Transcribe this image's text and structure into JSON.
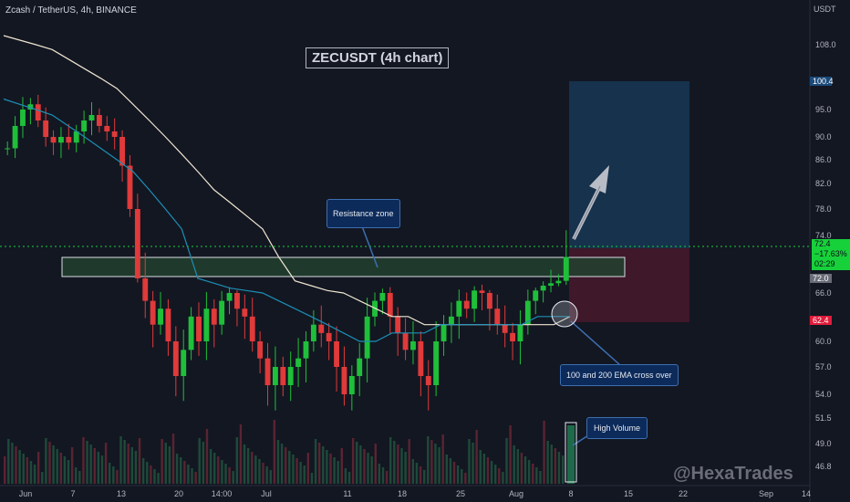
{
  "header": {
    "symbol": "Zcash / TetherUS, 4h, BINANCE"
  },
  "currency": "USDT",
  "title": "ZECUSDT (4h chart)",
  "annotations": {
    "resistance": "Resistance zone",
    "ema_cross": "100 and 200 EMA cross over",
    "volume": "High Volume"
  },
  "watermark": "@HexaTrades",
  "price_tags": {
    "target": "100.4",
    "current": "72.4",
    "change": "−17.63%",
    "countdown": "02:29",
    "entry": "72.0",
    "stop": "62.4"
  },
  "colors": {
    "background": "#131722",
    "up": "#26a69a",
    "up_candle": "#1fbf3a",
    "down_candle": "#e03a3a",
    "ema100": "#1c8fb5",
    "ema200": "#efe6d2",
    "target_zone": "#16324c",
    "stop_zone": "#3f1829",
    "resistance_zone": "#1f3a2c",
    "current_tag": "#17d13b",
    "stop_tag": "#e11b3c",
    "target_tag": "#1b4a7a"
  },
  "chart_data": {
    "type": "candlestick",
    "title": "ZECUSDT (4h chart)",
    "y_axis_ticks": [
      "108.0",
      "100.4",
      "95.0",
      "90.0",
      "86.0",
      "82.0",
      "78.0",
      "74.0",
      "72.4",
      "72.0",
      "66.0",
      "62.4",
      "60.0",
      "57.0",
      "54.0",
      "51.5",
      "49.0",
      "46.8"
    ],
    "x_axis_ticks": [
      "Jun",
      "7",
      "13",
      "20",
      "14:00",
      "Jul",
      "11",
      "18",
      "25",
      "Aug",
      "8",
      "15",
      "22",
      "Sep",
      "14"
    ],
    "ylim": [
      46.0,
      112.0
    ],
    "series": [
      {
        "name": "price",
        "values": [
          88,
          92,
          95,
          96,
          93,
          90,
          89,
          90,
          89,
          91,
          93,
          94,
          92,
          91,
          90,
          85,
          78,
          72,
          65,
          62,
          64,
          60,
          56,
          59,
          63,
          60,
          64,
          62,
          65,
          66,
          64,
          63,
          60,
          58,
          55,
          57,
          55,
          57,
          58,
          60,
          62,
          61,
          60,
          57,
          54,
          56,
          58,
          63,
          65,
          66,
          63,
          61,
          59,
          60,
          56,
          55,
          60,
          62,
          63,
          65,
          64,
          67,
          66,
          64,
          62,
          61,
          60,
          62,
          65,
          67,
          69,
          70,
          71,
          73
        ]
      },
      {
        "name": "EMA 100",
        "values": [
          97,
          96,
          95,
          94,
          92,
          90,
          88,
          86,
          84,
          81,
          78,
          75,
          72,
          70,
          68,
          67,
          66,
          65,
          64,
          63,
          62,
          61,
          60,
          60,
          61,
          61,
          61,
          62,
          62,
          62,
          62,
          62,
          62,
          63,
          63,
          63
        ]
      },
      {
        "name": "EMA 200",
        "values": [
          110,
          109,
          108,
          107,
          105,
          103,
          101,
          99,
          96,
          93,
          90,
          87,
          84,
          81,
          79,
          77,
          75,
          73,
          71,
          69,
          67,
          66,
          65,
          64,
          63,
          63,
          62,
          62,
          62,
          62,
          62,
          62,
          62,
          62,
          62,
          63
        ]
      }
    ],
    "levels": {
      "resistance_zone": [
        69.9,
        72.3
      ],
      "target": 100.4,
      "entry": 72.0,
      "stop": 62.4
    }
  }
}
